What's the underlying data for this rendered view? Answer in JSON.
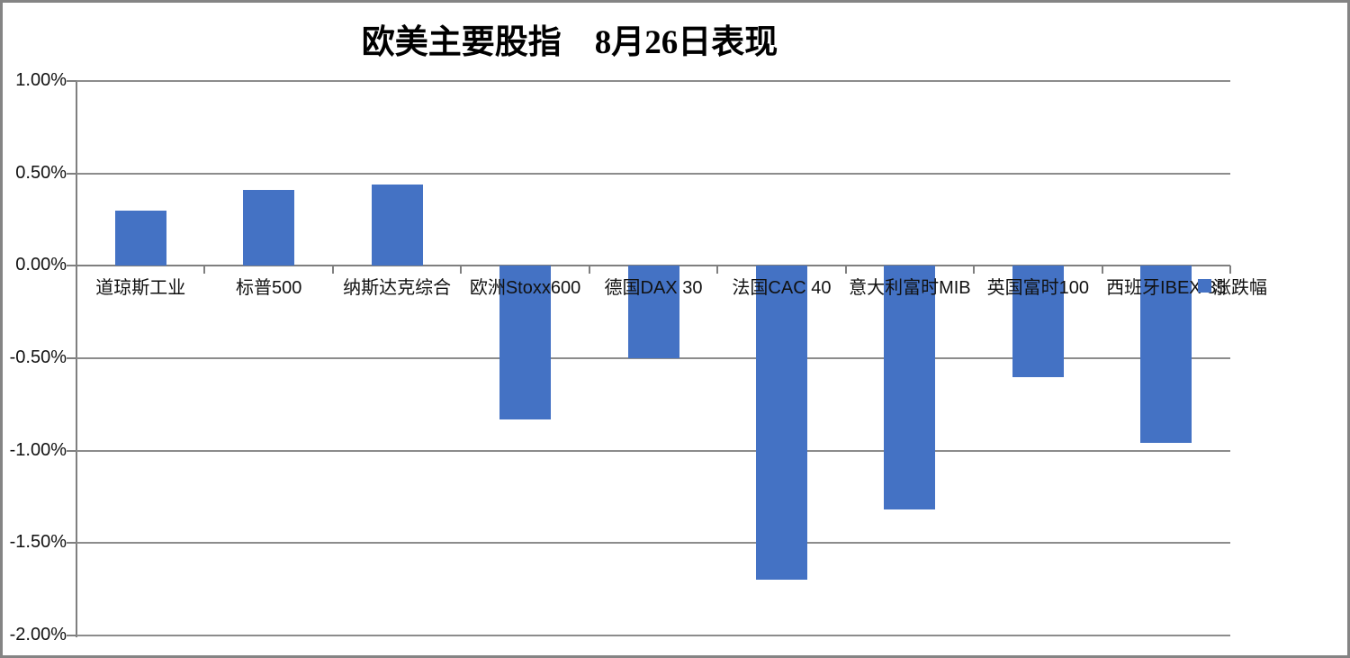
{
  "frame": {
    "border_color": "#848484",
    "background": "#ffffff"
  },
  "chart_data": {
    "type": "bar",
    "title": "欧美主要股指　8月26日表现",
    "categories": [
      "道琼斯工业",
      "标普500",
      "纳斯达克综合",
      "欧洲Stoxx600",
      "德国DAX 30",
      "法国CAC 40",
      "意大利富时MIB",
      "英国富时100",
      "西班牙IBEX 35"
    ],
    "series": [
      {
        "name": "涨跌幅",
        "color": "#4472C4",
        "values": [
          0.3,
          0.41,
          0.44,
          -0.83,
          -0.5,
          -1.7,
          -1.32,
          -0.6,
          -0.96
        ]
      }
    ],
    "value_unit": "%",
    "ylim": [
      -2.0,
      1.0
    ],
    "ytick_step": 0.5,
    "ytick_labels": [
      "1.00%",
      "0.50%",
      "0.00%",
      "-0.50%",
      "-1.00%",
      "-1.50%",
      "-2.00%"
    ],
    "xlabel": "",
    "ylabel": "",
    "grid": true,
    "legend": [
      {
        "label": "涨跌幅",
        "color": "#4472C4"
      }
    ],
    "legend_position": "right, at zero-line level"
  }
}
